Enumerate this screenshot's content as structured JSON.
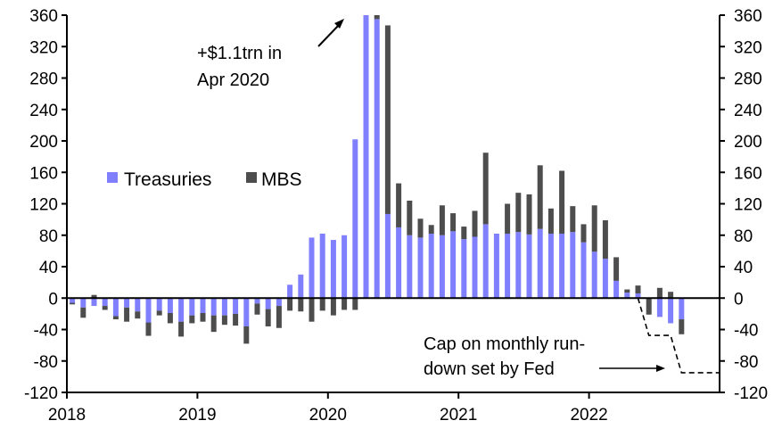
{
  "chart_data": {
    "type": "bar",
    "stacked": true,
    "title": "",
    "xlabel": "",
    "ylabel": "",
    "ylim": [
      -120,
      360
    ],
    "yticks": [
      360,
      320,
      280,
      240,
      200,
      160,
      120,
      80,
      40,
      0,
      -40,
      -80,
      -120
    ],
    "ytick_labels": [
      "360",
      "320",
      "280",
      "240",
      "200",
      "160",
      "120",
      "80",
      "40",
      "0",
      "-40",
      "-80",
      "-120"
    ],
    "secondary_axis": true,
    "xticks": [
      "2018",
      "2019",
      "2020",
      "2021",
      "2022"
    ],
    "x_start": "2018-01",
    "x_end_months": 60,
    "grid": false,
    "legend_position": "center-left",
    "categories": [
      "2018-01",
      "2018-02",
      "2018-03",
      "2018-04",
      "2018-05",
      "2018-06",
      "2018-07",
      "2018-08",
      "2018-09",
      "2018-10",
      "2018-11",
      "2018-12",
      "2019-01",
      "2019-02",
      "2019-03",
      "2019-04",
      "2019-05",
      "2019-06",
      "2019-07",
      "2019-08",
      "2019-09",
      "2019-10",
      "2019-11",
      "2019-12",
      "2020-01",
      "2020-02",
      "2020-03",
      "2020-04",
      "2020-05",
      "2020-06",
      "2020-07",
      "2020-08",
      "2020-09",
      "2020-10",
      "2020-11",
      "2020-12",
      "2021-01",
      "2021-02",
      "2021-03",
      "2021-04",
      "2021-05",
      "2021-06",
      "2021-07",
      "2021-08",
      "2021-09",
      "2021-10",
      "2021-11",
      "2021-12",
      "2022-01",
      "2022-02",
      "2022-03",
      "2022-04",
      "2022-05",
      "2022-06",
      "2022-07",
      "2022-08",
      "2022-09"
    ],
    "series": [
      {
        "name": "Treasuries",
        "color": "#8080FF",
        "values": [
          -6,
          -12,
          -10,
          -10,
          -23,
          -12,
          -17,
          -31,
          -16,
          -19,
          -30,
          -22,
          -19,
          -22,
          -22,
          -20,
          -36,
          -7,
          -14,
          -10,
          17,
          30,
          77,
          82,
          74,
          80,
          202,
          1100,
          355,
          107,
          90,
          80,
          77,
          82,
          80,
          85,
          75,
          78,
          94,
          82,
          82,
          84,
          81,
          88,
          82,
          82,
          84,
          71,
          59,
          50,
          22,
          7,
          6,
          0,
          -24,
          -32,
          -27
        ]
      },
      {
        "name": "MBS",
        "color": "#4D4D4D",
        "values": [
          -2,
          -13,
          4,
          -5,
          -4,
          -18,
          -9,
          -17,
          -6,
          -13,
          -19,
          -10,
          -11,
          -21,
          -12,
          -15,
          -22,
          -14,
          -22,
          -28,
          -16,
          -17,
          -30,
          -16,
          -22,
          -15,
          -15,
          0,
          30,
          240,
          56,
          44,
          24,
          11,
          38,
          23,
          16,
          33,
          91,
          0,
          38,
          50,
          51,
          81,
          32,
          80,
          33,
          23,
          59,
          49,
          30,
          4,
          10,
          -21,
          13,
          8,
          -19
        ]
      }
    ],
    "cap_line": {
      "name": "Cap on monthly run-down set by Fed",
      "style": "dashed",
      "points": [
        {
          "month_index": 52.5,
          "value": 0
        },
        {
          "month_index": 53.5,
          "value": -47.5
        },
        {
          "month_index": 55.5,
          "value": -47.5
        },
        {
          "month_index": 56.5,
          "value": -95
        },
        {
          "month_index": 60,
          "value": -95
        }
      ]
    },
    "annotations": [
      {
        "id": "peak",
        "lines": [
          "+$1.1trn in",
          "Apr 2020"
        ]
      },
      {
        "id": "cap",
        "lines": [
          "Cap on monthly run-",
          "down set by Fed"
        ]
      }
    ],
    "legend": [
      {
        "label": "Treasuries",
        "color": "#8080FF"
      },
      {
        "label": "MBS",
        "color": "#4D4D4D"
      }
    ]
  }
}
